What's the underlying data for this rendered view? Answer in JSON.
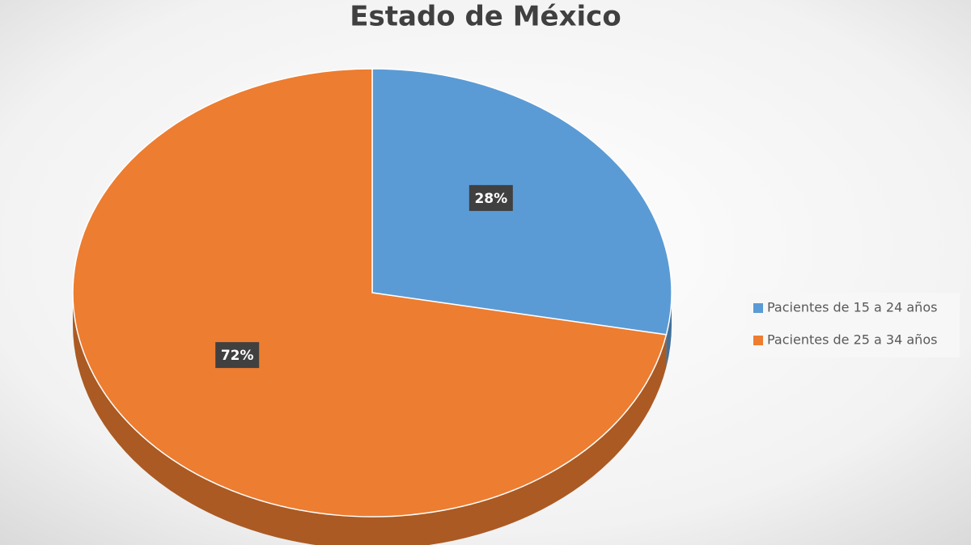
{
  "chart_data": {
    "type": "pie",
    "title": "Estado de México",
    "categories": [
      "Pacientes de 15 a 24 años",
      "Pacientes de 25 a 34 años"
    ],
    "values": [
      28,
      72
    ],
    "value_labels": [
      "28%",
      "72%"
    ],
    "colors": [
      "#5b9bd5",
      "#ed7d31"
    ],
    "legend": "right"
  }
}
